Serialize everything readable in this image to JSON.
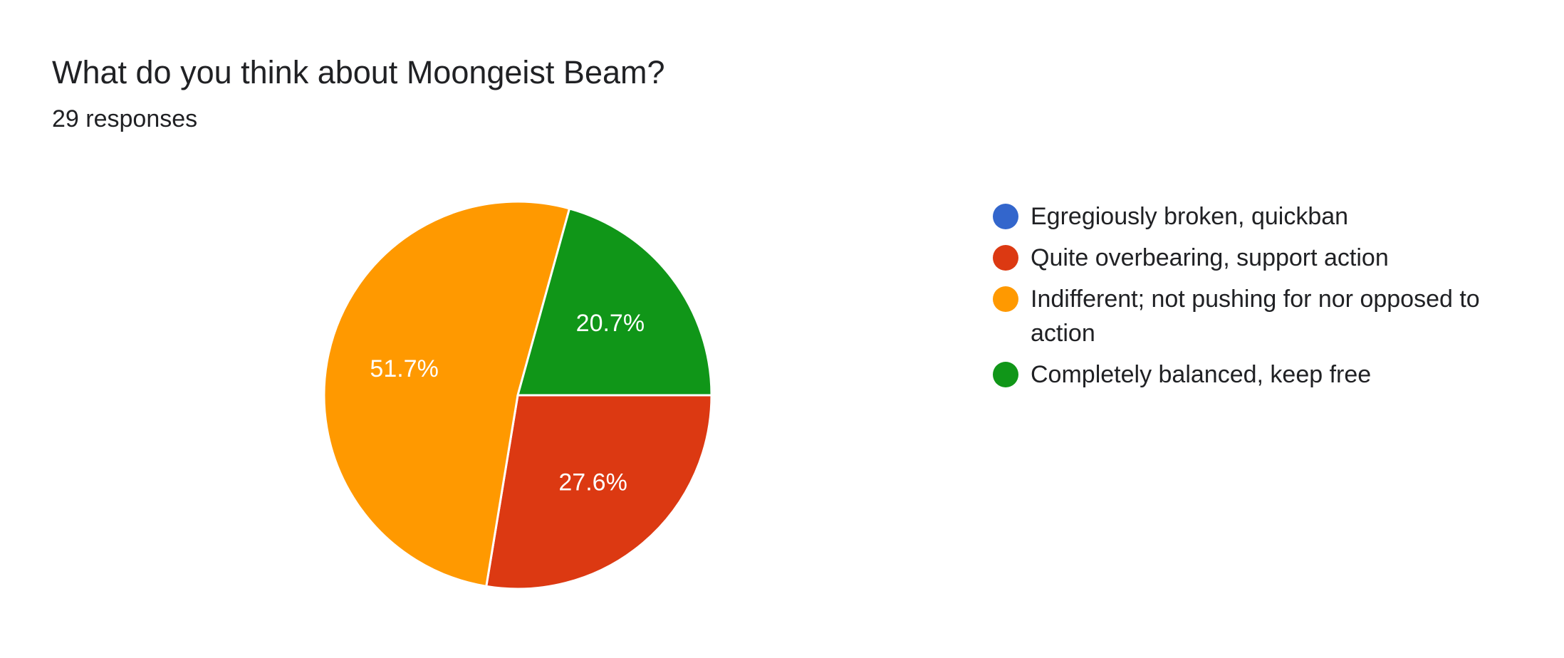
{
  "chart_data": {
    "type": "pie",
    "title": "What do you think about Moongeist Beam?",
    "subtitle": "29 responses",
    "categories": [
      "Egregiously broken, quickban",
      "Quite overbearing, support action",
      "Indifferent; not pushing for nor opposed to action",
      "Completely balanced, keep free"
    ],
    "values": [
      0,
      27.6,
      51.7,
      20.7
    ],
    "value_labels": [
      null,
      "27.6%",
      "51.7%",
      "20.7%"
    ],
    "colors": [
      "#3366cc",
      "#dc3912",
      "#ff9900",
      "#109618"
    ],
    "legend": "right"
  }
}
